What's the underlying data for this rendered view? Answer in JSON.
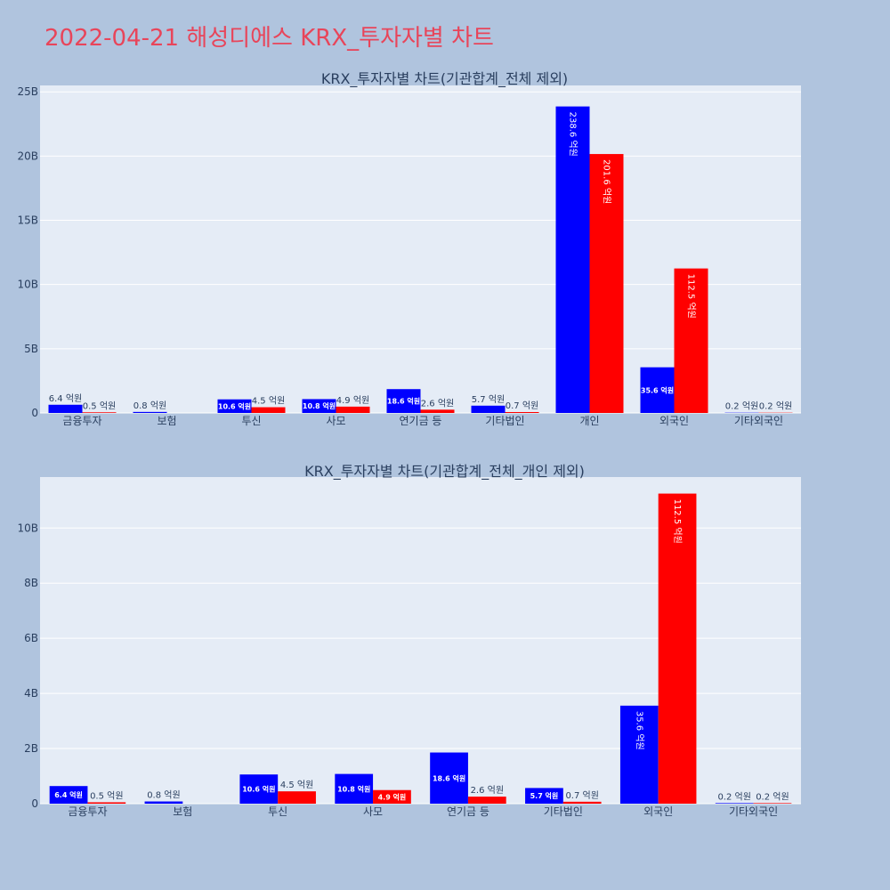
{
  "title": "2022-04-21 해성디에스 KRX_투자자별 차트",
  "colors": {
    "series1": "#0000ff",
    "series2": "#ff0000",
    "plot_bg": "#e5ecf6",
    "page_bg": "#b0c4de",
    "title": "#e8455a"
  },
  "chart_data": [
    {
      "type": "bar",
      "title": "KRX_투자자별 차트(기관합계_전체 제외)",
      "categories": [
        "금융투자",
        "보험",
        "투신",
        "사모",
        "연기금 등",
        "기타법인",
        "개인",
        "외국인",
        "기타외국인"
      ],
      "series": [
        {
          "values": [
            639340000,
            80000000,
            1059000000,
            1078000000,
            1856000000,
            568000000,
            23864000000,
            3556000000,
            20000000
          ],
          "labels": [
            "6.4 억원",
            "0.8 억원",
            "10.6 억원",
            "10.8 억원",
            "18.6 억원",
            "5.7 억원",
            "238.6 억원",
            "35.6 억원",
            "0.2 억원"
          ]
        },
        {
          "values": [
            50000000,
            0,
            447000000,
            493000000,
            255000000,
            70000000,
            20160000000,
            11250000000,
            20000000
          ],
          "labels": [
            "0.5 억원",
            "",
            "4.5 억원",
            "4.9 억원",
            "2.6 억원",
            "0.7 억원",
            "201.6 억원",
            "112.5 억원",
            "0.2 억원"
          ]
        }
      ],
      "ylim": [
        0,
        25500000000
      ],
      "yticks": [
        0,
        5000000000,
        10000000000,
        15000000000,
        20000000000,
        25000000000
      ],
      "ytick_labels": [
        "0",
        "5B",
        "10B",
        "15B",
        "20B",
        "25B"
      ],
      "grid": true
    },
    {
      "type": "bar",
      "title": "KRX_투자자별 차트(기관합계_전체_개인 제외)",
      "categories": [
        "금융투자",
        "보험",
        "투신",
        "사모",
        "연기금 등",
        "기타법인",
        "외국인",
        "기타외국인"
      ],
      "series": [
        {
          "values": [
            639340000,
            80000000,
            1059000000,
            1078000000,
            1856000000,
            568000000,
            3556000000,
            20000000
          ],
          "labels": [
            "6.4 억원",
            "0.8 억원",
            "10.6 억원",
            "10.8 억원",
            "18.6 억원",
            "5.7 억원",
            "35.6 억원",
            "0.2 억원"
          ]
        },
        {
          "values": [
            50000000,
            0,
            447000000,
            493000000,
            255000000,
            70000000,
            11250000000,
            20000000
          ],
          "labels": [
            "0.5 억원",
            "",
            "4.5 억원",
            "4.9 억원",
            "2.6 억원",
            "0.7 억원",
            "112.5 억원",
            "0.2 억원"
          ]
        }
      ],
      "ylim": [
        0,
        11850000000
      ],
      "yticks": [
        0,
        2000000000,
        4000000000,
        6000000000,
        8000000000,
        10000000000
      ],
      "ytick_labels": [
        "0",
        "2B",
        "4B",
        "6B",
        "8B",
        "10B"
      ],
      "grid": true
    }
  ]
}
